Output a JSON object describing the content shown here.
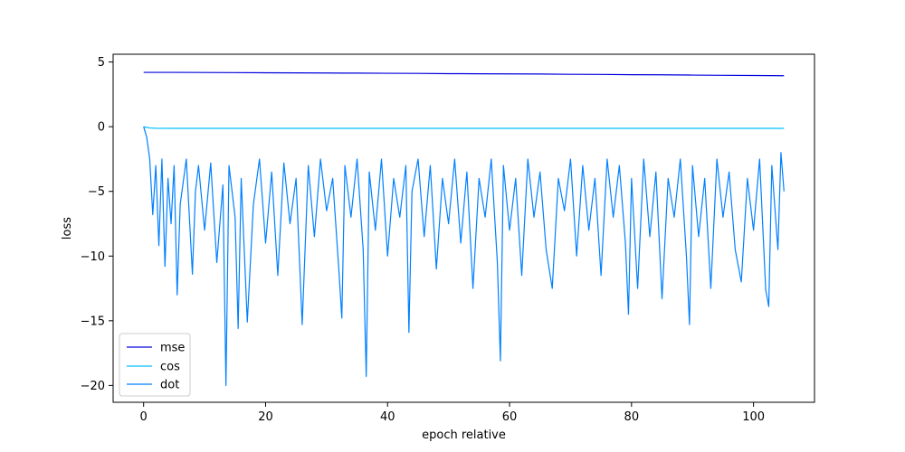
{
  "chart_data": {
    "type": "line",
    "title": "",
    "xlabel": "epoch relative",
    "ylabel": "loss",
    "xlim": [
      -5,
      110
    ],
    "ylim": [
      -21.3,
      5.6
    ],
    "x_range": [
      0,
      105
    ],
    "x_ticks": [
      0,
      20,
      40,
      60,
      80,
      100
    ],
    "x_tick_labels": [
      "0",
      "20",
      "40",
      "60",
      "80",
      "100"
    ],
    "y_ticks": [
      5,
      0,
      -5,
      -10,
      -15,
      -20
    ],
    "y_tick_labels": [
      "5",
      "0",
      "−5",
      "−10",
      "−15",
      "−20"
    ],
    "grid": false,
    "legend_position": "lower-left",
    "series": [
      {
        "name": "mse",
        "color": "#0000dd",
        "x": [
          0,
          5,
          10,
          15,
          20,
          25,
          30,
          35,
          40,
          45,
          50,
          55,
          60,
          65,
          70,
          75,
          80,
          85,
          90,
          95,
          100,
          105
        ],
        "values": [
          4.2,
          4.2,
          4.19,
          4.18,
          4.17,
          4.16,
          4.15,
          4.14,
          4.13,
          4.12,
          4.1,
          4.09,
          4.08,
          4.07,
          4.05,
          4.04,
          4.02,
          4.01,
          3.99,
          3.97,
          3.96,
          3.94
        ]
      },
      {
        "name": "cos",
        "color": "#00bfff",
        "x": [
          0,
          0.5,
          1,
          2,
          5,
          10,
          20,
          40,
          60,
          80,
          100,
          105
        ],
        "values": [
          0.0,
          -0.05,
          -0.1,
          -0.12,
          -0.13,
          -0.13,
          -0.13,
          -0.13,
          -0.13,
          -0.13,
          -0.13,
          -0.13
        ]
      },
      {
        "name": "dot",
        "color": "#0080ff",
        "x": [
          0,
          0.5,
          1,
          1.5,
          2,
          2.5,
          3,
          3.5,
          4,
          4.5,
          5,
          5.5,
          6,
          7,
          8,
          8.5,
          9,
          10,
          11,
          12,
          13,
          13.5,
          14,
          15,
          15.5,
          16,
          17,
          18,
          19,
          20,
          21,
          22,
          23,
          24,
          25,
          26,
          27,
          28,
          29,
          30,
          31,
          32,
          32.5,
          33,
          34,
          35,
          36,
          36.5,
          37,
          38,
          39,
          40,
          41,
          42,
          43,
          43.5,
          44,
          45,
          46,
          47,
          48,
          49,
          50,
          51,
          52,
          53,
          54,
          55,
          56,
          57,
          58,
          58.5,
          59,
          60,
          61,
          62,
          63,
          64,
          65,
          66,
          67,
          68,
          69,
          70,
          71,
          72,
          73,
          74,
          75,
          76,
          77,
          78,
          79,
          79.5,
          80,
          81,
          82,
          83,
          84,
          85,
          86,
          87,
          88,
          89,
          89.5,
          90,
          91,
          92,
          93,
          94,
          95,
          96,
          97,
          98,
          99,
          100,
          101,
          102,
          102.5,
          103,
          104,
          104.5,
          105
        ],
        "values": [
          0.0,
          -0.8,
          -2.5,
          -6.8,
          -3.0,
          -9.2,
          -2.5,
          -10.8,
          -4.0,
          -7.5,
          -3.0,
          -13.0,
          -6.0,
          -2.5,
          -11.4,
          -5.0,
          -3.0,
          -8.0,
          -2.8,
          -10.5,
          -4.5,
          -20.0,
          -3.0,
          -7.0,
          -15.6,
          -4.0,
          -15.1,
          -6.0,
          -2.5,
          -9.0,
          -3.5,
          -11.5,
          -2.8,
          -7.5,
          -4.0,
          -15.3,
          -3.0,
          -8.5,
          -2.5,
          -6.5,
          -4.0,
          -11.0,
          -14.8,
          -3.0,
          -7.0,
          -2.5,
          -9.5,
          -19.3,
          -3.5,
          -8.0,
          -2.5,
          -10.0,
          -4.0,
          -7.0,
          -3.0,
          -15.9,
          -5.0,
          -2.5,
          -8.5,
          -3.0,
          -11.0,
          -4.0,
          -7.5,
          -2.5,
          -9.0,
          -3.5,
          -12.5,
          -4.0,
          -7.0,
          -2.5,
          -10.5,
          -18.1,
          -3.0,
          -8.0,
          -4.0,
          -11.5,
          -2.5,
          -7.0,
          -3.5,
          -9.5,
          -12.5,
          -4.0,
          -6.5,
          -2.5,
          -10.0,
          -3.0,
          -8.0,
          -4.0,
          -11.5,
          -2.5,
          -7.0,
          -3.0,
          -9.0,
          -14.5,
          -4.0,
          -12.5,
          -2.5,
          -8.5,
          -3.5,
          -13.3,
          -4.0,
          -7.0,
          -2.5,
          -10.0,
          -15.3,
          -3.0,
          -8.5,
          -4.0,
          -12.5,
          -2.5,
          -7.0,
          -3.5,
          -9.5,
          -12.0,
          -4.0,
          -8.0,
          -2.5,
          -12.6,
          -13.9,
          -3.0,
          -9.5,
          -2.0,
          -5.0
        ]
      }
    ]
  }
}
